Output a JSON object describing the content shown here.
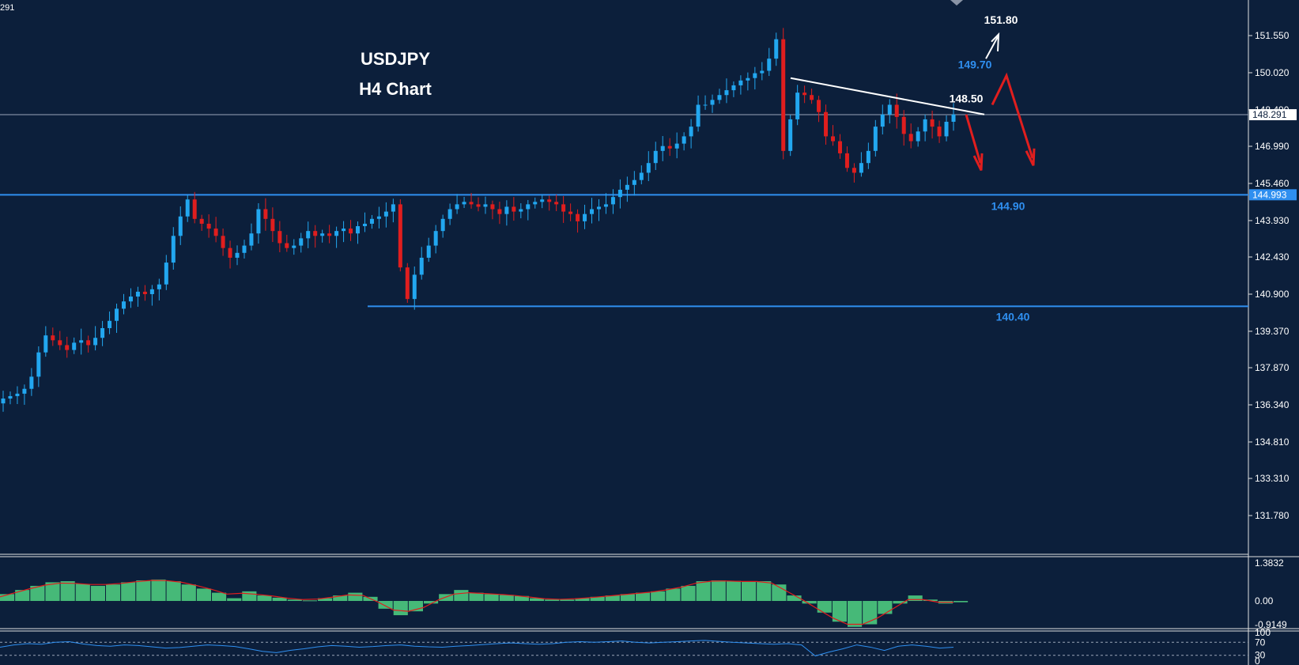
{
  "chart_data": [
    {
      "type": "candlestick",
      "title": "USDJPY",
      "subtitle": "H4 Chart",
      "corner_label": "291",
      "y_ticks": [
        "151.550",
        "150.020",
        "148.490",
        "146.990",
        "145.460",
        "143.930",
        "142.430",
        "140.900",
        "139.370",
        "137.870",
        "136.340",
        "134.810",
        "133.310",
        "131.780"
      ],
      "ylim": [
        131.2,
        152.6
      ],
      "current_price": "148.291",
      "current_price_value": 148.291,
      "support_marker": "144.993",
      "support_marker_value": 144.993,
      "levels": [
        {
          "label": "144.90",
          "value": 144.9,
          "color": "#2f8ff0"
        },
        {
          "label": "140.40",
          "value": 140.4,
          "color": "#2f8ff0"
        },
        {
          "label": "149.70",
          "value": 149.7,
          "color": "#2f8ff0"
        },
        {
          "label": "148.50",
          "value": 148.5,
          "color": "#ffffff"
        },
        {
          "label": "151.80",
          "value": 151.8,
          "color": "#ffffff"
        }
      ],
      "closes": [
        136.6,
        136.7,
        136.8,
        137.0,
        137.5,
        138.5,
        139.2,
        139.0,
        138.8,
        138.6,
        138.9,
        139.0,
        138.8,
        139.1,
        139.5,
        139.8,
        140.3,
        140.6,
        140.8,
        141.0,
        140.9,
        141.1,
        141.3,
        142.2,
        143.3,
        144.1,
        144.8,
        144.0,
        143.8,
        143.6,
        143.3,
        142.8,
        142.4,
        142.6,
        142.9,
        143.4,
        144.4,
        144.0,
        143.5,
        143.0,
        142.8,
        142.9,
        143.2,
        143.5,
        143.3,
        143.4,
        143.3,
        143.5,
        143.6,
        143.4,
        143.7,
        143.8,
        144.0,
        144.1,
        144.3,
        144.6,
        142.0,
        140.7,
        141.7,
        142.4,
        142.9,
        143.5,
        144.0,
        144.4,
        144.6,
        144.7,
        144.6,
        144.5,
        144.6,
        144.4,
        144.2,
        144.5,
        144.3,
        144.4,
        144.6,
        144.7,
        144.8,
        144.7,
        144.6,
        144.3,
        144.2,
        143.9,
        144.2,
        144.4,
        144.5,
        144.6,
        144.9,
        145.2,
        145.4,
        145.6,
        145.9,
        146.3,
        146.8,
        147.0,
        146.9,
        147.1,
        147.4,
        147.8,
        148.7,
        148.7,
        148.9,
        149.1,
        149.3,
        149.5,
        149.7,
        149.8,
        150.0,
        150.1,
        150.6,
        151.4,
        146.8,
        148.1,
        149.2,
        149.1,
        148.9,
        148.4,
        147.4,
        147.2,
        146.7,
        146.1,
        145.9,
        146.3,
        146.8,
        147.8,
        148.3,
        148.7,
        148.2,
        147.5,
        147.2,
        147.6,
        148.1,
        147.8,
        147.4,
        148.0,
        148.3
      ],
      "macd": {
        "hist": [
          0.25,
          0.4,
          0.55,
          0.68,
          0.72,
          0.62,
          0.55,
          0.6,
          0.68,
          0.75,
          0.78,
          0.72,
          0.6,
          0.45,
          0.3,
          0.1,
          0.35,
          0.2,
          0.12,
          0.05,
          0.02,
          0.1,
          0.2,
          0.3,
          0.15,
          -0.3,
          -0.55,
          -0.4,
          -0.1,
          0.25,
          0.4,
          0.3,
          0.25,
          0.22,
          0.18,
          0.1,
          0.05,
          0.05,
          0.1,
          0.15,
          0.2,
          0.25,
          0.3,
          0.35,
          0.45,
          0.55,
          0.72,
          0.75,
          0.73,
          0.7,
          0.72,
          0.6,
          0.2,
          -0.1,
          -0.45,
          -0.8,
          -1.0,
          -0.9,
          -0.5,
          -0.1,
          0.2,
          0.05,
          -0.1,
          -0.05
        ],
        "signal": [
          0.15,
          0.3,
          0.45,
          0.58,
          0.65,
          0.64,
          0.6,
          0.6,
          0.64,
          0.7,
          0.75,
          0.74,
          0.68,
          0.56,
          0.42,
          0.25,
          0.28,
          0.24,
          0.18,
          0.1,
          0.05,
          0.07,
          0.14,
          0.22,
          0.2,
          -0.05,
          -0.35,
          -0.4,
          -0.25,
          0.05,
          0.25,
          0.3,
          0.27,
          0.24,
          0.2,
          0.14,
          0.08,
          0.06,
          0.08,
          0.12,
          0.17,
          0.22,
          0.27,
          0.32,
          0.4,
          0.5,
          0.65,
          0.72,
          0.73,
          0.71,
          0.71,
          0.65,
          0.35,
          0.05,
          -0.3,
          -0.65,
          -0.9,
          -0.9,
          -0.65,
          -0.3,
          0.05,
          0.05,
          -0.05,
          -0.05
        ],
        "y_ticks": [
          "1.3832",
          "0.00",
          "-0.9149"
        ]
      },
      "rsi": {
        "values": [
          55,
          62,
          66,
          64,
          70,
          72,
          65,
          60,
          58,
          62,
          60,
          56,
          52,
          54,
          58,
          62,
          60,
          57,
          50,
          42,
          38,
          45,
          50,
          56,
          60,
          58,
          55,
          57,
          60,
          62,
          58,
          56,
          55,
          58,
          60,
          63,
          66,
          68,
          66,
          64,
          66,
          70,
          72,
          70,
          72,
          74,
          70,
          68,
          70,
          72,
          74,
          76,
          73,
          70,
          68,
          66,
          64,
          66,
          62,
          28,
          40,
          50,
          62,
          55,
          45,
          58,
          62,
          58,
          52,
          55
        ],
        "y_ticks": [
          "100",
          "70",
          "30",
          "0"
        ]
      }
    }
  ]
}
